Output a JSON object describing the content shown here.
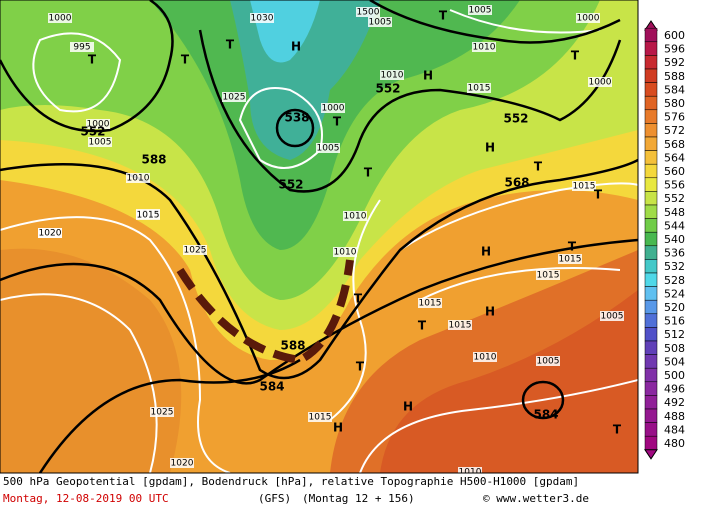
{
  "map": {
    "contour_labels": [
      "1000",
      "995",
      "1000",
      "1005",
      "552",
      "1020",
      "1015",
      "T",
      "T",
      "T",
      "1030",
      "H",
      "1025",
      "538",
      "1000",
      "1005",
      "T",
      "552",
      "1500",
      "1005",
      "T",
      "1010",
      "552",
      "H",
      "1005",
      "1010",
      "1015",
      "552",
      "H",
      "1000",
      "1000",
      "T",
      "568",
      "1015",
      "T",
      "T",
      "588",
      "1010",
      "1015",
      "1020",
      "1025",
      "T",
      "1010",
      "1010",
      "H",
      "1015",
      "T",
      "1015",
      "T",
      "1015",
      "H",
      "1015",
      "1005",
      "T",
      "588",
      "584",
      "T",
      "H",
      "1010",
      "1005",
      "584",
      "1015",
      "H",
      "T",
      "1025",
      "1020",
      "1010"
    ],
    "trough": "dashed"
  },
  "colorbar": {
    "labels": [
      600,
      596,
      592,
      588,
      584,
      580,
      576,
      572,
      568,
      564,
      560,
      556,
      552,
      548,
      544,
      540,
      536,
      532,
      528,
      524,
      520,
      516,
      512,
      508,
      504,
      500,
      496,
      492,
      488,
      484,
      480
    ],
    "colors": [
      "#a0105a",
      "#b81848",
      "#c82a30",
      "#d03c22",
      "#d84c20",
      "#e06424",
      "#e87a2a",
      "#ee9030",
      "#f2a836",
      "#f4c03a",
      "#f4d83c",
      "#e8e840",
      "#c8e448",
      "#a0dc48",
      "#70cc48",
      "#48b850",
      "#40b090",
      "#44c8c8",
      "#50d8e8",
      "#60c0f0",
      "#5898e8",
      "#5070d8",
      "#5050c8",
      "#6040b8",
      "#7038b0",
      "#8030a8",
      "#8a28a0",
      "#902098",
      "#941890",
      "#981088",
      "#a00880"
    ]
  },
  "footer": {
    "line1": "500 hPa Geopotential [gpdam], Bodendruck [hPa], relative Topographie H500-H1000 [gpdam]",
    "date": "Montag, 12-08-2019  00 UTC",
    "model": "(GFS)",
    "run": "(Montag 12 + 156)",
    "credit": "© www.wetter3.de"
  }
}
